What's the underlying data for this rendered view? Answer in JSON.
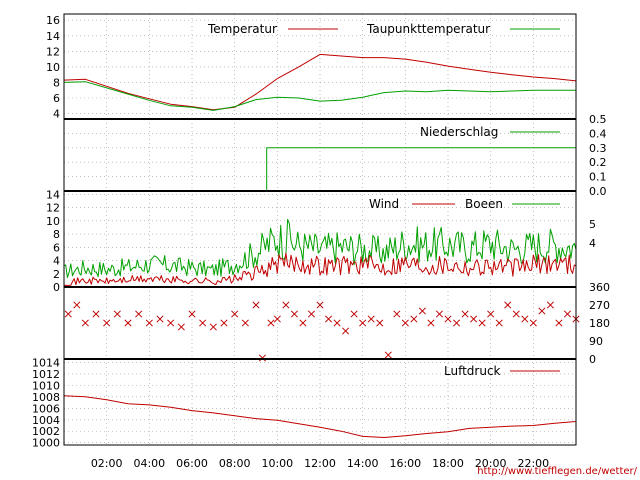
{
  "colors": {
    "temperature": "#c00000",
    "dewpoint": "#00a000",
    "rain": "#00a000",
    "wind": "#c00000",
    "gust": "#00a000",
    "direction": "#c00000",
    "pressure": "#c00000"
  },
  "credit": "http://www.tiefflegen.de/wetter/",
  "x_ticks": [
    "02:00",
    "04:00",
    "06:00",
    "08:00",
    "10:00",
    "12:00",
    "14:00",
    "16:00",
    "18:00",
    "20:00",
    "22:00"
  ],
  "chart_data": [
    {
      "type": "line",
      "x": [
        "00:00",
        "01:00",
        "02:00",
        "03:00",
        "04:00",
        "05:00",
        "06:00",
        "07:00",
        "08:00",
        "09:00",
        "10:00",
        "11:00",
        "12:00",
        "13:00",
        "14:00",
        "15:00",
        "16:00",
        "17:00",
        "18:00",
        "19:00",
        "20:00",
        "21:00",
        "22:00",
        "23:00",
        "24:00"
      ],
      "series": [
        {
          "name": "Temperatur",
          "values": [
            8.3,
            8.4,
            7.5,
            6.6,
            5.9,
            5.2,
            4.9,
            4.5,
            4.8,
            6.5,
            8.5,
            10.0,
            11.6,
            11.4,
            11.2,
            11.2,
            11.0,
            10.6,
            10.1,
            9.7,
            9.3,
            9.0,
            8.7,
            8.5,
            8.2
          ]
        },
        {
          "name": "Taupunkttemperatur",
          "values": [
            8.0,
            8.1,
            7.3,
            6.5,
            5.7,
            5.0,
            4.8,
            4.4,
            4.9,
            5.8,
            6.1,
            6.0,
            5.6,
            5.7,
            6.1,
            6.7,
            6.9,
            6.8,
            7.0,
            6.9,
            6.8,
            6.9,
            7.0,
            7.0,
            7.0
          ]
        }
      ],
      "ylim": [
        3.3,
        16.8
      ],
      "y_ticks": [
        4,
        6,
        8,
        10,
        12,
        14,
        16
      ]
    },
    {
      "type": "line",
      "x": [
        "00:00",
        "09:30",
        "09:30",
        "24:00"
      ],
      "series": [
        {
          "name": "Niederschlag",
          "values": [
            0,
            0,
            0.3,
            0.3
          ]
        }
      ],
      "ylim": [
        0,
        0.5
      ],
      "y_ticks": [
        0,
        0.1,
        0.2,
        0.3,
        0.4,
        0.5
      ]
    },
    {
      "type": "line",
      "x": [
        "00:00",
        "01:00",
        "02:00",
        "03:00",
        "04:00",
        "05:00",
        "06:00",
        "07:00",
        "08:00",
        "09:00",
        "10:00",
        "11:00",
        "12:00",
        "13:00",
        "14:00",
        "15:00",
        "16:00",
        "17:00",
        "18:00",
        "19:00",
        "20:00",
        "21:00",
        "22:00",
        "23:00",
        "24:00"
      ],
      "series": [
        {
          "name": "Wind",
          "values": [
            0.5,
            0.8,
            0.7,
            0.9,
            1.0,
            0.9,
            0.8,
            0.7,
            1.0,
            1.8,
            3.0,
            3.2,
            2.8,
            2.9,
            3.0,
            2.6,
            3.2,
            2.8,
            3.0,
            2.6,
            2.8,
            2.5,
            2.9,
            3.2,
            3.0
          ]
        },
        {
          "name": "Boeen",
          "values": [
            2.0,
            2.5,
            2.3,
            2.6,
            3.0,
            2.8,
            2.5,
            2.2,
            3.0,
            4.5,
            6.5,
            5.5,
            5.0,
            5.3,
            5.0,
            4.6,
            5.8,
            5.5,
            5.6,
            5.2,
            5.8,
            5.0,
            5.4,
            5.6,
            5.2
          ]
        }
      ],
      "ylim": [
        0,
        14.5
      ],
      "y_ticks": [
        0,
        2,
        4,
        6,
        8,
        10,
        12,
        14
      ],
      "y2_ticks": [
        "5",
        "4"
      ]
    },
    {
      "type": "scatter",
      "x": [
        0.2,
        0.6,
        1.0,
        1.5,
        2.0,
        2.5,
        3.0,
        3.5,
        4.0,
        4.5,
        5.0,
        5.5,
        6.0,
        6.5,
        7.0,
        7.5,
        8.0,
        8.5,
        9.0,
        9.3,
        9.7,
        10.0,
        10.4,
        10.8,
        11.2,
        11.6,
        12.0,
        12.4,
        12.8,
        13.2,
        13.6,
        14.0,
        14.4,
        14.8,
        15.2,
        15.6,
        16.0,
        16.4,
        16.8,
        17.2,
        17.6,
        18.0,
        18.4,
        18.8,
        19.2,
        19.6,
        20.0,
        20.4,
        20.8,
        21.2,
        21.6,
        22.0,
        22.4,
        22.8,
        23.2,
        23.6,
        24.0
      ],
      "series": [
        {
          "name": "",
          "values": [
            225,
            270,
            180,
            225,
            180,
            225,
            180,
            225,
            180,
            200,
            180,
            160,
            225,
            180,
            160,
            180,
            225,
            180,
            270,
            5,
            180,
            200,
            270,
            225,
            180,
            225,
            270,
            200,
            180,
            140,
            225,
            180,
            200,
            180,
            20,
            225,
            180,
            200,
            240,
            180,
            225,
            200,
            180,
            225,
            200,
            180,
            225,
            180,
            270,
            225,
            200,
            180,
            240,
            270,
            180,
            225,
            200
          ]
        }
      ],
      "ylim": [
        0,
        360
      ],
      "y_ticks": [
        0,
        90,
        180,
        270,
        360
      ]
    },
    {
      "type": "line",
      "x": [
        "00:00",
        "01:00",
        "02:00",
        "03:00",
        "04:00",
        "05:00",
        "06:00",
        "07:00",
        "08:00",
        "09:00",
        "10:00",
        "11:00",
        "12:00",
        "13:00",
        "14:00",
        "15:00",
        "16:00",
        "17:00",
        "18:00",
        "19:00",
        "20:00",
        "21:00",
        "22:00",
        "23:00",
        "24:00"
      ],
      "series": [
        {
          "name": "Luftdruck",
          "values": [
            1008.2,
            1008.0,
            1007.5,
            1006.8,
            1006.6,
            1006.2,
            1005.6,
            1005.2,
            1004.7,
            1004.2,
            1003.9,
            1003.3,
            1002.7,
            1002.0,
            1001.1,
            1000.9,
            1001.2,
            1001.6,
            1001.9,
            1002.5,
            1002.7,
            1002.9,
            1003.0,
            1003.4,
            1003.7
          ]
        }
      ],
      "ylim": [
        999.6,
        1014.6
      ],
      "y_ticks": [
        1000,
        1002,
        1004,
        1006,
        1008,
        1010,
        1012,
        1014
      ]
    }
  ]
}
